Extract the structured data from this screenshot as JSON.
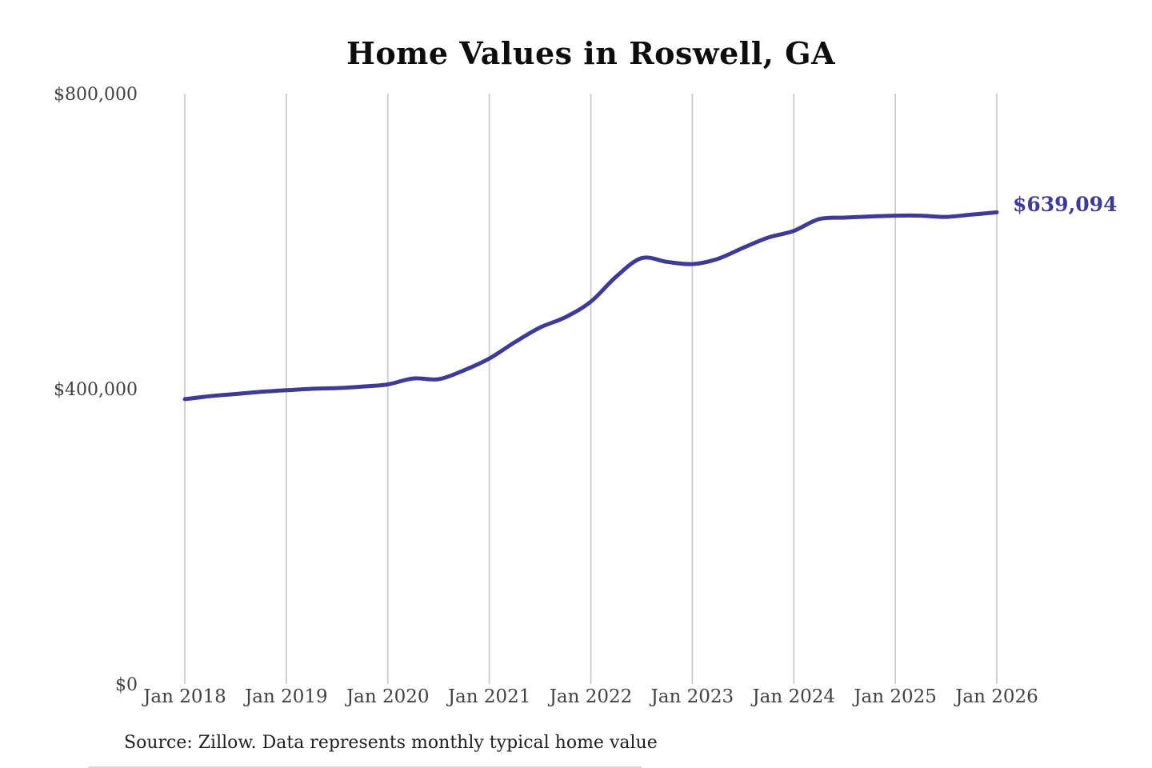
{
  "title": "Home Values in Roswell, GA",
  "source_note": "Source: Zillow. Data represents monthly typical home value",
  "colors": {
    "line": "#3d3b94",
    "end_label": "#3d3b94",
    "gridline": "#cccccc",
    "axis_text": "#414141",
    "title_text": "#0d0d0d",
    "source_text": "#1f1f1f",
    "background": "#ffffff"
  },
  "chart_data": {
    "type": "line",
    "title": "Home Values in Roswell, GA",
    "xlabel": "",
    "ylabel": "",
    "x_unit": "decimal_year",
    "xlim": [
      2018,
      2026
    ],
    "ylim": [
      0,
      800000
    ],
    "grid": "vertical-only",
    "x_ticks": [
      2018,
      2019,
      2020,
      2021,
      2022,
      2023,
      2024,
      2025,
      2026
    ],
    "x_tick_labels": [
      "Jan 2018",
      "Jan 2019",
      "Jan 2020",
      "Jan 2021",
      "Jan 2022",
      "Jan 2023",
      "Jan 2024",
      "Jan 2025",
      "Jan 2026"
    ],
    "y_ticks": [
      0,
      400000,
      800000
    ],
    "y_tick_labels": [
      "$0",
      "$400,000",
      "$800,000"
    ],
    "series": [
      {
        "name": "Typical home value (USD)",
        "x": [
          2018.0,
          2018.25,
          2018.5,
          2018.75,
          2019.0,
          2019.25,
          2019.5,
          2019.75,
          2020.0,
          2020.25,
          2020.5,
          2020.75,
          2021.0,
          2021.25,
          2021.5,
          2021.75,
          2022.0,
          2022.25,
          2022.5,
          2022.75,
          2023.0,
          2023.25,
          2023.5,
          2023.75,
          2024.0,
          2024.25,
          2024.5,
          2024.75,
          2025.0,
          2025.25,
          2025.5,
          2025.75,
          2026.0
        ],
        "values": [
          386000,
          390000,
          393000,
          396000,
          398000,
          400000,
          401000,
          403000,
          406000,
          414000,
          413000,
          425000,
          441000,
          463000,
          483000,
          497000,
          518000,
          552000,
          577000,
          572000,
          569000,
          576000,
          591000,
          605000,
          614000,
          630000,
          632000,
          633500,
          634600,
          634600,
          633000,
          636000,
          639094
        ]
      }
    ],
    "end_annotation": {
      "label": "$639,094",
      "value": 639094
    }
  }
}
